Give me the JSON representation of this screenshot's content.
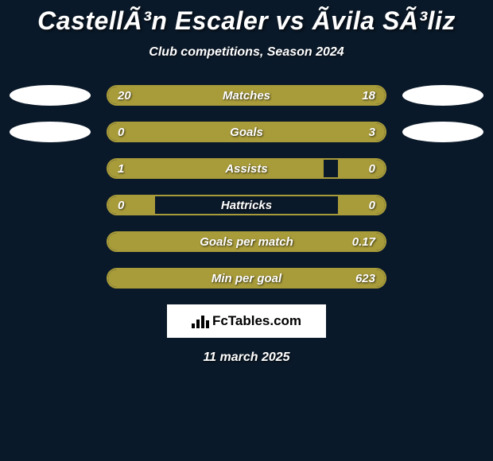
{
  "title": "CastellÃ³n Escaler vs Ãvila SÃ³liz",
  "subtitle": "Club competitions, Season 2024",
  "colors": {
    "background": "#0a1929",
    "bar_border": "#a89b3a",
    "bar_fill": "#a89b3a",
    "avatar_bg": "#ffffff",
    "text": "#ffffff",
    "logo_bg": "#ffffff",
    "logo_text": "#000000"
  },
  "stats": [
    {
      "label": "Matches",
      "left_value": "20",
      "right_value": "18",
      "left_pct": 52.6,
      "right_pct": 47.4,
      "show_avatars": true
    },
    {
      "label": "Goals",
      "left_value": "0",
      "right_value": "3",
      "left_pct": 17,
      "right_pct": 83,
      "show_avatars": true
    },
    {
      "label": "Assists",
      "left_value": "1",
      "right_value": "0",
      "left_pct": 78,
      "right_pct": 17,
      "show_avatars": false
    },
    {
      "label": "Hattricks",
      "left_value": "0",
      "right_value": "0",
      "left_pct": 17,
      "right_pct": 17,
      "show_avatars": false
    },
    {
      "label": "Goals per match",
      "left_value": "",
      "right_value": "0.17",
      "left_pct": 17,
      "right_pct": 83,
      "show_avatars": false
    },
    {
      "label": "Min per goal",
      "left_value": "",
      "right_value": "623",
      "left_pct": 17,
      "right_pct": 83,
      "show_avatars": false
    }
  ],
  "logo_text": "FcTables.com",
  "date": "11 march 2025"
}
